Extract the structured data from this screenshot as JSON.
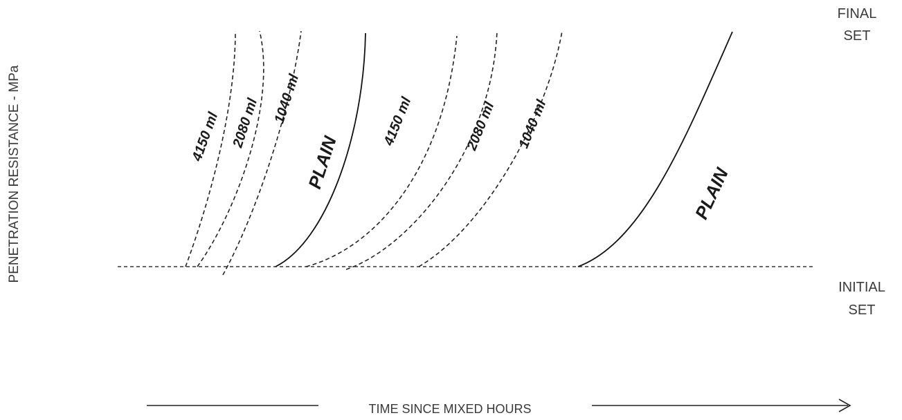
{
  "chart_data": {
    "type": "line",
    "title": "",
    "xlabel": "TIME SINCE MIXED HOURS",
    "ylabel": "PENETRATION RESISTANCE - MPa",
    "grid": false,
    "legend": "none",
    "reference_lines": [
      {
        "label_lines": [
          "FINAL",
          "SET"
        ]
      },
      {
        "label_lines": [
          "INITIAL",
          "SET"
        ]
      }
    ],
    "groups": [
      {
        "series": [
          {
            "name": "4150 ml",
            "style": "dashed"
          },
          {
            "name": "2080 ml",
            "style": "dashed"
          },
          {
            "name": "1040 ml",
            "style": "dashed"
          },
          {
            "name": "PLAIN",
            "style": "solid"
          }
        ]
      },
      {
        "series": [
          {
            "name": "4150 ml",
            "style": "dashed"
          },
          {
            "name": "2080 ml",
            "style": "dashed"
          },
          {
            "name": "1040 ml",
            "style": "dashed"
          },
          {
            "name": "PLAIN",
            "style": "solid"
          }
        ]
      }
    ]
  }
}
